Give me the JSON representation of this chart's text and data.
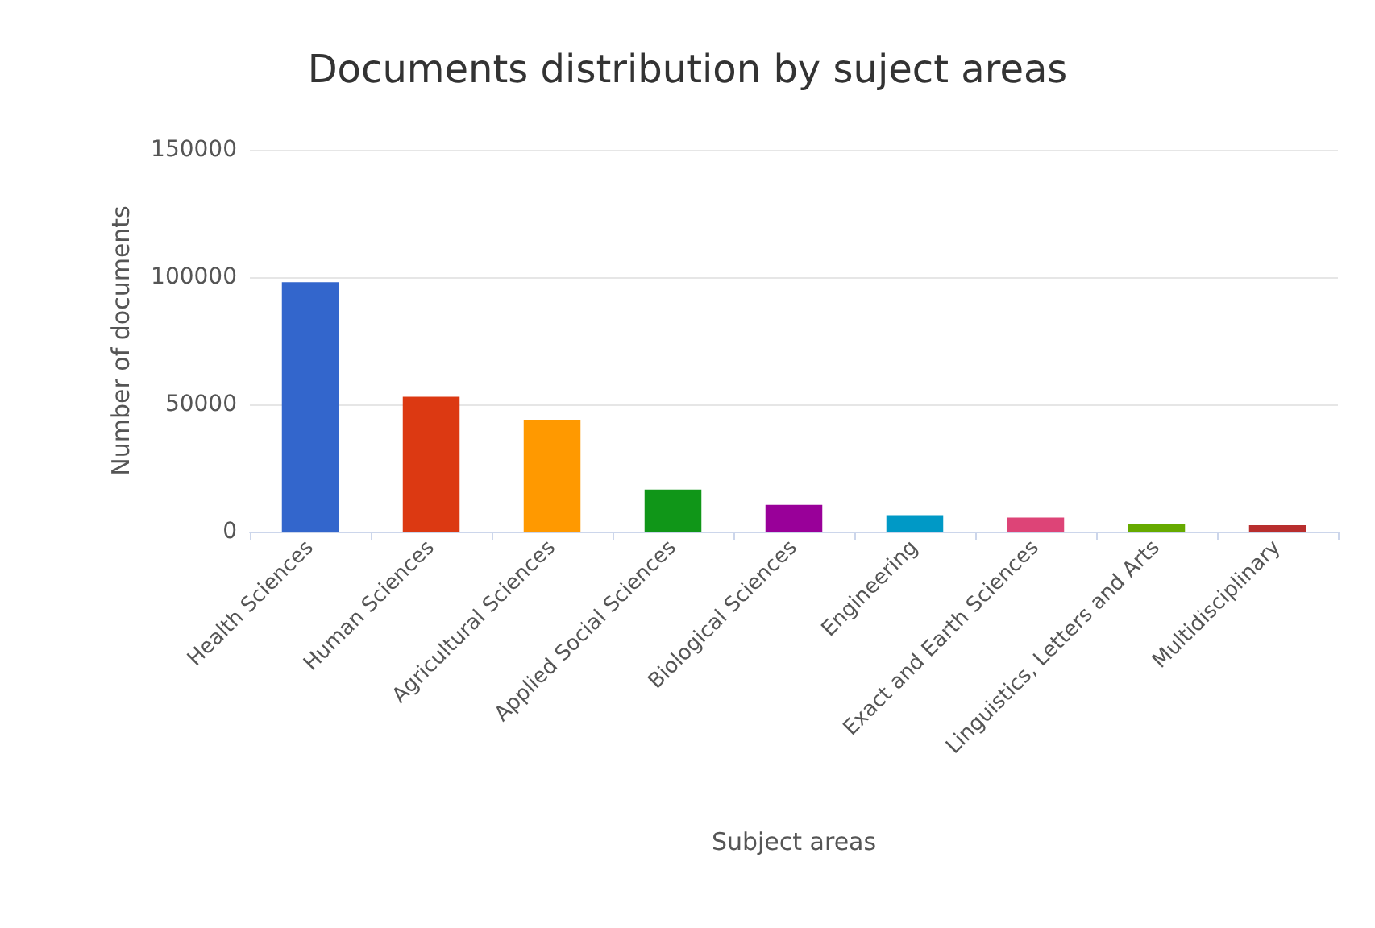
{
  "chart_data": {
    "type": "bar",
    "title": "Documents distribution by suject areas",
    "xlabel": "Subject areas",
    "ylabel": "Number of documents",
    "categories": [
      "Health Sciences",
      "Human Sciences",
      "Agricultural Sciences",
      "Applied Social Sciences",
      "Biological Sciences",
      "Engineering",
      "Exact and Earth Sciences",
      "Linguistics, Letters and Arts",
      "Multidisciplinary"
    ],
    "values": [
      98000,
      53000,
      44000,
      16500,
      10500,
      6500,
      5500,
      3000,
      2500
    ],
    "colors": [
      "#3366cc",
      "#dc3912",
      "#ff9900",
      "#109618",
      "#990099",
      "#0099c6",
      "#dd4477",
      "#66aa00",
      "#b82e2e"
    ],
    "ylim": [
      0,
      150000
    ],
    "yticks": [
      0,
      50000,
      100000,
      150000
    ],
    "grid": "y"
  }
}
